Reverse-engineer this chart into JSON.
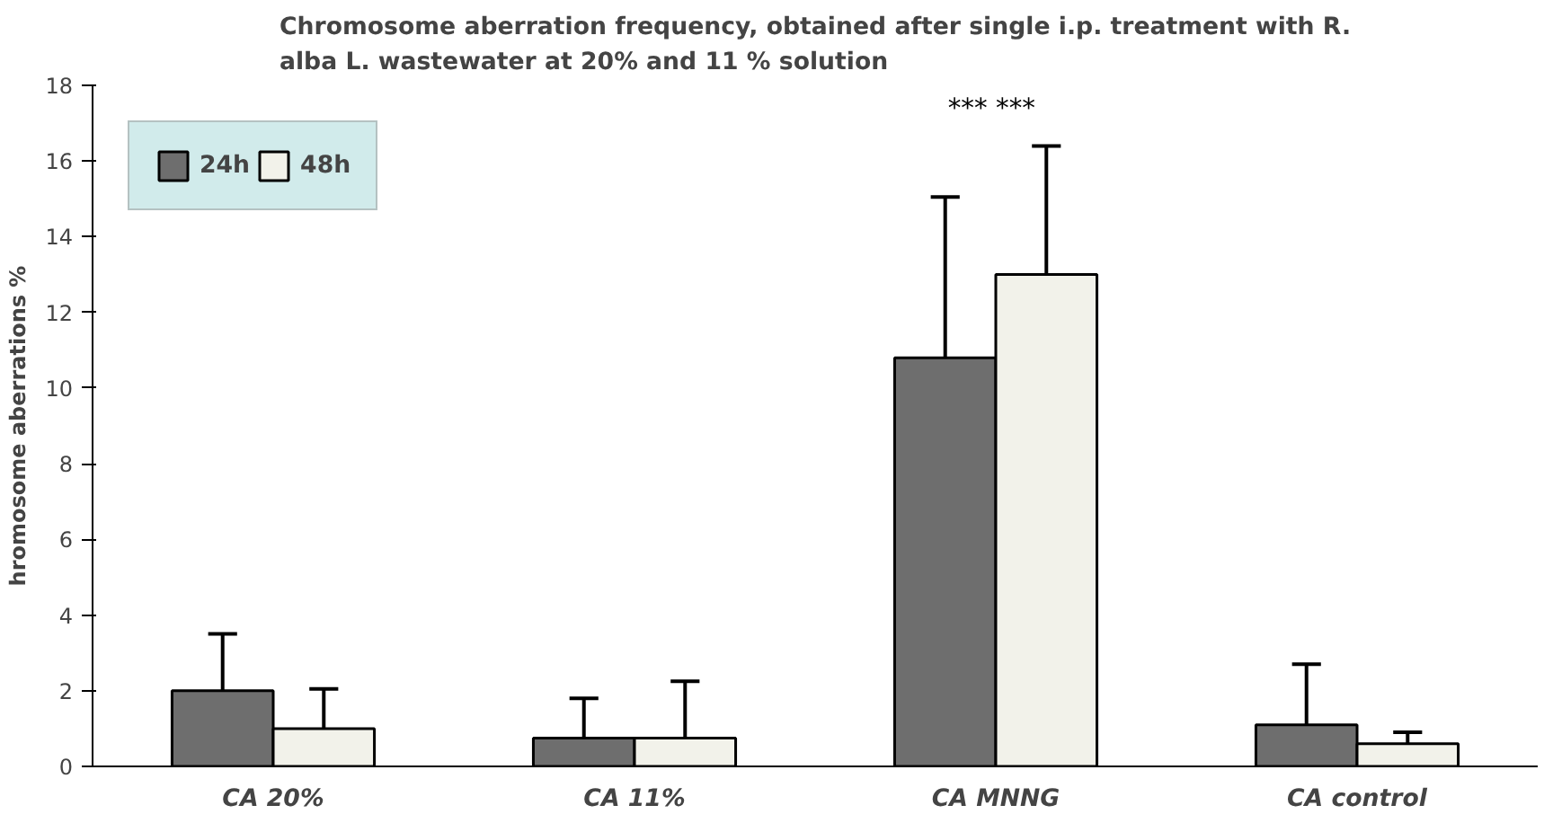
{
  "chart_data": {
    "type": "bar",
    "title": "Chromosome aberration frequency, obtained after single i.p. treatment with R. alba L. wastewater at 20% and 11 % solution",
    "ylabel": "hromosome aberrations %",
    "categories": [
      "CA 20%",
      "CA 11%",
      "CA MNNG",
      "CA control"
    ],
    "series": [
      {
        "name": "24h",
        "color": "#6e6e6e",
        "values": [
          2.0,
          0.75,
          10.8,
          1.1
        ],
        "errors": [
          [
            2.0,
            3.5
          ],
          [
            0.75,
            1.8
          ],
          [
            10.8,
            15.05
          ],
          [
            1.1,
            2.7
          ]
        ]
      },
      {
        "name": "48h",
        "color": "#f2f2ea",
        "values": [
          1.0,
          0.75,
          13.0,
          0.6
        ],
        "errors": [
          [
            1.0,
            2.05
          ],
          [
            0.75,
            2.25
          ],
          [
            13.0,
            16.4
          ],
          [
            0.6,
            0.9
          ]
        ]
      }
    ],
    "annotations": [
      "***  ***"
    ],
    "ylim": [
      0,
      18
    ],
    "yticks": [
      0,
      2,
      4,
      6,
      8,
      10,
      12,
      14,
      16,
      18
    ],
    "grid": false,
    "legend": "top left"
  }
}
